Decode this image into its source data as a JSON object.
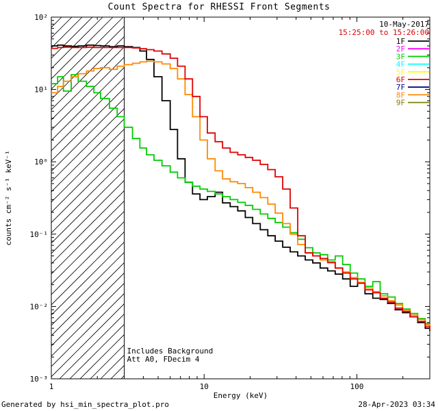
{
  "footer": {
    "left": "Generated by hsi_min_spectra_plot.pro",
    "right": "28-Apr-2023 03:34"
  },
  "chart_data": {
    "type": "line",
    "title": "Count Spectra for RHESSI Front Segments",
    "date": "10-May-2017",
    "time_range": "15:25:00 to 15:26:00",
    "xlabel": "Energy (keV)",
    "ylabel": "counts cm⁻² s⁻¹ keV⁻¹",
    "xscale": "log",
    "yscale": "log",
    "xlim": [
      1,
      300
    ],
    "ylim": [
      0.001,
      100
    ],
    "grid": false,
    "legend_position": "top-right",
    "x_ticks": {
      "major": [
        1,
        10,
        100
      ],
      "labels": [
        "1",
        "10",
        "100"
      ]
    },
    "y_ticks": {
      "major_exponents": [
        -3,
        -2,
        -1,
        0,
        1,
        2
      ],
      "labels": [
        "10⁻³",
        "10⁻²",
        "10⁻¹",
        "10⁰",
        "10¹",
        "10²"
      ]
    },
    "hatch_region": {
      "from": 1,
      "to": 3
    },
    "annotations": [
      "Includes Background",
      "Att A0, FDecim 4"
    ],
    "legend": [
      {
        "label": "1F",
        "color": "#000000"
      },
      {
        "label": "2F",
        "color": "#ff00ff"
      },
      {
        "label": "3F",
        "color": "#00cc00"
      },
      {
        "label": "4F",
        "color": "#00ffff"
      },
      {
        "label": "5F",
        "color": "#ffff00"
      },
      {
        "label": "6F",
        "color": "#dd0000"
      },
      {
        "label": "7F",
        "color": "#00008b"
      },
      {
        "label": "8F",
        "color": "#ff8800"
      },
      {
        "label": "9F",
        "color": "#808000"
      }
    ],
    "energies": [
      1.0,
      1.1,
      1.2,
      1.35,
      1.5,
      1.7,
      1.9,
      2.1,
      2.4,
      2.7,
      3.0,
      3.4,
      3.8,
      4.2,
      4.7,
      5.3,
      6.0,
      6.7,
      7.5,
      8.4,
      9.4,
      10.5,
      11.8,
      13.2,
      14.8,
      16.6,
      18.6,
      20.8,
      23.3,
      26.1,
      29.2,
      32.7,
      36.6,
      41.0,
      45.9,
      51.4,
      57.5,
      64.4,
      72.1,
      80.7,
      90.4,
      101,
      113,
      127,
      142,
      159,
      178,
      199,
      223,
      250,
      280,
      300
    ],
    "series": [
      {
        "name": "1F",
        "color": "#000000",
        "values": [
          40,
          41,
          40,
          39.5,
          40,
          41,
          40.5,
          40,
          39,
          40,
          39,
          38,
          34,
          26,
          15,
          7,
          2.8,
          1.1,
          0.52,
          0.36,
          0.3,
          0.33,
          0.38,
          0.27,
          0.24,
          0.21,
          0.17,
          0.14,
          0.115,
          0.095,
          0.08,
          0.066,
          0.057,
          0.05,
          0.044,
          0.04,
          0.034,
          0.031,
          0.028,
          0.024,
          0.019,
          0.021,
          0.015,
          0.013,
          0.0125,
          0.011,
          0.009,
          0.0082,
          0.0072,
          0.006,
          0.005,
          0.0046
        ]
      },
      {
        "name": "3F",
        "color": "#00cc00",
        "values": [
          12,
          15,
          9.5,
          16,
          13,
          11,
          9,
          7.5,
          5.5,
          4.2,
          3.0,
          2.1,
          1.55,
          1.25,
          1.05,
          0.88,
          0.72,
          0.6,
          0.52,
          0.46,
          0.42,
          0.39,
          0.36,
          0.33,
          0.3,
          0.275,
          0.25,
          0.22,
          0.19,
          0.165,
          0.145,
          0.125,
          0.105,
          0.085,
          0.065,
          0.055,
          0.052,
          0.044,
          0.05,
          0.038,
          0.029,
          0.024,
          0.019,
          0.022,
          0.015,
          0.0135,
          0.011,
          0.0092,
          0.008,
          0.0068,
          0.0058,
          0.005
        ]
      },
      {
        "name": "8F",
        "color": "#ff8800",
        "values": [
          9,
          11,
          13,
          15,
          16.5,
          18,
          19.5,
          20,
          19,
          21,
          22,
          23,
          24,
          24.5,
          24,
          22.5,
          19.5,
          14,
          8.5,
          4.2,
          2.0,
          1.1,
          0.75,
          0.58,
          0.53,
          0.5,
          0.44,
          0.38,
          0.32,
          0.26,
          0.195,
          0.14,
          0.1,
          0.072,
          0.055,
          0.05,
          0.044,
          0.04,
          0.034,
          0.03,
          0.025,
          0.0215,
          0.018,
          0.016,
          0.014,
          0.012,
          0.0105,
          0.0088,
          0.0076,
          0.0066,
          0.0056,
          0.005
        ]
      },
      {
        "name": "6F",
        "color": "#dd0000",
        "values": [
          37,
          38,
          38.5,
          38,
          38,
          38.5,
          38,
          38,
          38,
          38,
          38,
          37.5,
          36.5,
          35.5,
          34,
          31,
          27,
          21,
          14,
          8,
          4.2,
          2.5,
          1.9,
          1.55,
          1.35,
          1.25,
          1.15,
          1.05,
          0.92,
          0.78,
          0.62,
          0.42,
          0.23,
          0.095,
          0.055,
          0.05,
          0.046,
          0.041,
          0.034,
          0.029,
          0.024,
          0.021,
          0.017,
          0.0155,
          0.013,
          0.0115,
          0.0095,
          0.0085,
          0.0072,
          0.0062,
          0.0053,
          0.0047
        ]
      }
    ]
  }
}
